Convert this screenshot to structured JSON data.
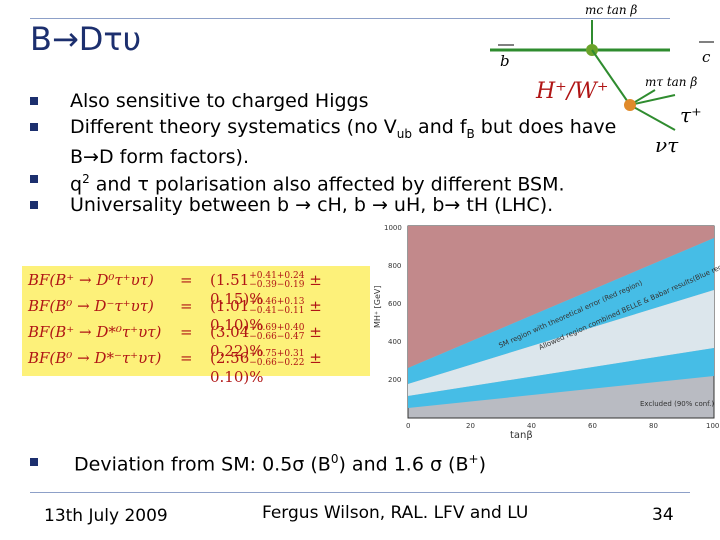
{
  "slide": {
    "title": "B→Dτυ",
    "bullets": [
      {
        "text": "Also sensitive to charged Higgs"
      },
      {
        "line1_pre": "Different theory systematics (no V",
        "line1_sub": "ub",
        "line1_mid": " and f",
        "line1_sub2": "B",
        "line1_post": " but does have",
        "line2": "B→D form factors)."
      },
      {
        "pre": "q",
        "sup": "2",
        "post": " and τ polarisation also affected by different BSM."
      },
      {
        "text": "Universality between b → cH, b → uH, b→ tH (LHC)."
      },
      {
        "pre": "Deviation from SM: 0.5σ (B",
        "sup": "0",
        "mid": ") and 1.6 σ (B",
        "sup2": "+",
        "post": ")"
      }
    ]
  },
  "diagram": {
    "b_label": "b",
    "c_label": "c",
    "higgs_label": "H⁺/W⁺",
    "tau_label": "τ⁺",
    "nu_label": "ντ",
    "coupling_top": "mc tan β",
    "coupling_right": "mτ tan β"
  },
  "plot": {
    "y_ticks": [
      "1000",
      "800",
      "600",
      "400",
      "200"
    ],
    "x_ticks": [
      "0",
      "20",
      "40",
      "60",
      "80",
      "100"
    ],
    "ylabel": "MH⁺ [GeV]",
    "xlabel": "tanβ",
    "band_label_red": "SM region with theoretical error (Red region)",
    "band_label_blue": "Allowed region combined BELLE & Babar results(Blue region)",
    "excluded_label": "Excluded (90% conf.)",
    "colors": {
      "red": "#c2898b",
      "blue": "#46bde6",
      "grey": "#b9bbc2"
    }
  },
  "branching_fractions": [
    {
      "lhs": "BF(B⁺ → D⁰τ⁺υτ)",
      "eq": "=",
      "central": "(1.51",
      "up": "+0.41+0.24",
      "down": "−0.39−0.19",
      "tail": "± 0.15)%"
    },
    {
      "lhs": "BF(B⁰ → D⁻τ⁺υτ)",
      "eq": "=",
      "central": "(1.01",
      "up": "+0.46+0.13",
      "down": "−0.41−0.11",
      "tail": "± 0.10)%"
    },
    {
      "lhs": "BF(B⁺ → D*⁰τ⁺υτ)",
      "eq": "=",
      "central": "(3.04",
      "up": "+0.69+0.40",
      "down": "−0.66−0.47",
      "tail": "± 0.22)%"
    },
    {
      "lhs": "BF(B⁰ → D*⁻τ⁺υτ)",
      "eq": "=",
      "central": "(2.56",
      "up": "+0.75+0.31",
      "down": "−0.66−0.22",
      "tail": "± 0.10)%"
    }
  ],
  "footer": {
    "date": "13th July 2009",
    "author": "Fergus Wilson, RAL. LFV and LU",
    "page": "34"
  }
}
